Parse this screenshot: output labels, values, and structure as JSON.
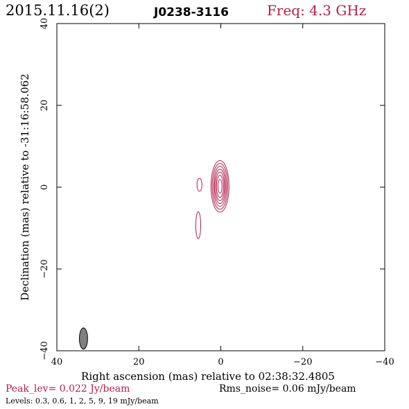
{
  "header": {
    "date": "2015.11.16(2)",
    "source": "J0238-3116",
    "freq": "Freq: 4.3 GHz"
  },
  "footer": {
    "peak": "Peak_lev=  0.022 Jy/beam",
    "rms": "Rms_noise= 0.06 mJy/beam",
    "levels": "Levels: 0.3, 0.6,   1,   2,   5,   9,  19 mJy/beam"
  },
  "colors": {
    "contour": "#b0204a",
    "text_accent": "#b0204a",
    "axis": "#000000",
    "beam": "#808080"
  },
  "chart_data": {
    "type": "contour",
    "title": "J0238-3116",
    "xlabel": "Right ascension (mas) relative to 02:38:32.4805",
    "ylabel": "Declination (mas) relative to -31:16:58.062",
    "xlim": [
      40,
      -40
    ],
    "ylim": [
      -40,
      40
    ],
    "xticks": [
      40,
      20,
      0,
      -20,
      -40
    ],
    "yticks": [
      -40,
      -20,
      0,
      20,
      40
    ],
    "grid": false,
    "peak_jy_per_beam": 0.022,
    "rms_mjy_per_beam": 0.06,
    "levels_mjy_per_beam": [
      0.3,
      0.6,
      1,
      2,
      5,
      9,
      19
    ],
    "core": {
      "x": 0.2,
      "y": 0.2,
      "contours": [
        [
          2.2,
          6.3
        ],
        [
          1.9,
          5.6
        ],
        [
          1.6,
          4.9
        ],
        [
          1.35,
          4.2
        ],
        [
          1.1,
          3.5
        ],
        [
          0.85,
          2.7
        ],
        [
          0.5,
          1.7
        ]
      ]
    },
    "components": [
      {
        "x": 5.2,
        "y": 0.6,
        "rx": 0.6,
        "ry": 1.6
      },
      {
        "x": 5.5,
        "y": -9.3,
        "rx": 0.6,
        "ry": 3.3
      }
    ],
    "beam": {
      "x": 33.5,
      "y": -37.0,
      "major": 5.2,
      "minor": 2.0,
      "pa": 0
    }
  }
}
